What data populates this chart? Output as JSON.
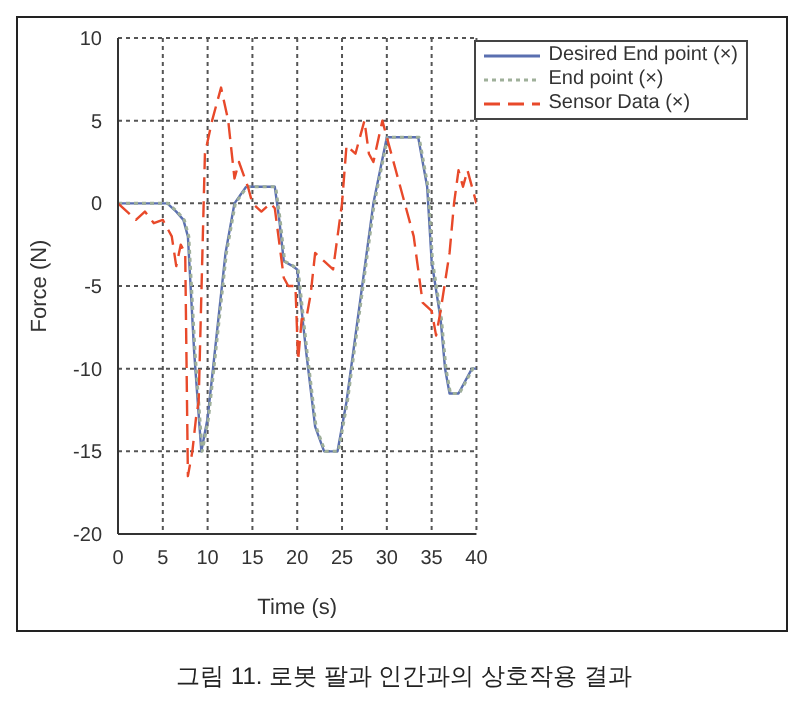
{
  "chart_data": {
    "type": "line",
    "xlabel": "Time (s)",
    "ylabel": "Force (N)",
    "xlim": [
      0,
      40
    ],
    "ylim": [
      -20,
      10
    ],
    "xticks": [
      0,
      5,
      10,
      15,
      20,
      25,
      30,
      35,
      40
    ],
    "yticks": [
      -20,
      -15,
      -10,
      -5,
      0,
      5,
      10
    ],
    "grid": true,
    "legend": "top right",
    "marker": "none",
    "annotations": [
      "그림 11. 로봇 팔과 인간과의 상호작용 결과"
    ],
    "series": [
      {
        "name": "Desired End point (×)",
        "color": "#5a6fb0",
        "line_style": "solid",
        "x": [
          0,
          5.5,
          6.5,
          7.3,
          7.8,
          8.5,
          9.3,
          10,
          11,
          12,
          13,
          14.3,
          15,
          17.5,
          18,
          18.5,
          19.5,
          20,
          21,
          22,
          23,
          24.5,
          25.5,
          27,
          28.5,
          30,
          30.5,
          33.5,
          34.5,
          35,
          36,
          36.5,
          37,
          38,
          39.5,
          40
        ],
        "values": [
          0,
          0,
          -0.5,
          -1,
          -2,
          -9,
          -15,
          -13,
          -8,
          -3,
          0,
          1,
          1,
          1,
          -1,
          -3.5,
          -3.8,
          -4,
          -9,
          -13.5,
          -15,
          -15,
          -12,
          -6,
          0,
          4,
          4,
          4,
          1,
          -3.5,
          -7,
          -10,
          -11.5,
          -11.5,
          -10,
          -10
        ]
      },
      {
        "name": "End point (×)",
        "color": "#9fb09a",
        "line_style": "dotted",
        "x": [
          0,
          5.6,
          6.6,
          7.4,
          7.9,
          8.6,
          9.4,
          10.1,
          11.1,
          12.1,
          13.1,
          14.4,
          15.1,
          17.6,
          18.1,
          18.6,
          19.6,
          20.1,
          21.1,
          22.1,
          23.1,
          24.6,
          25.6,
          27.1,
          28.6,
          30.1,
          30.6,
          33.6,
          34.6,
          35.1,
          36.1,
          36.6,
          37.1,
          38.1,
          39.6,
          40
        ],
        "values": [
          0,
          0,
          -0.5,
          -1,
          -2,
          -9,
          -15,
          -13,
          -8,
          -3,
          0,
          1,
          1,
          1,
          -1,
          -3.5,
          -3.8,
          -4,
          -9,
          -13.5,
          -15,
          -15,
          -12,
          -6,
          0,
          4,
          4,
          4,
          1,
          -3.5,
          -7,
          -10,
          -11.5,
          -11.5,
          -10,
          -10
        ]
      },
      {
        "name": "Sensor Data (×)",
        "color": "#e8492a",
        "line_style": "dashed",
        "x": [
          0,
          2,
          3,
          4,
          5,
          6,
          6.5,
          7,
          7.5,
          7.8,
          8.3,
          8.7,
          9,
          9.7,
          10.5,
          11.5,
          12.3,
          13,
          13.5,
          14.5,
          15,
          16,
          17,
          17.5,
          18.5,
          19,
          19.8,
          20.1,
          20.5,
          21,
          21.5,
          22,
          23,
          24,
          25,
          25.5,
          26.5,
          27.5,
          28,
          28.5,
          29.5,
          30.5,
          31,
          32,
          33,
          34,
          35,
          35.5,
          36,
          37,
          37.5,
          38,
          38.5,
          39,
          40
        ],
        "values": [
          0,
          -1,
          -0.5,
          -1.2,
          -1,
          -2,
          -3.8,
          -2.5,
          -3,
          -16.5,
          -15,
          -13,
          -12,
          3,
          5,
          7,
          5,
          1.5,
          2.5,
          1,
          0,
          -0.5,
          0,
          -0.3,
          -4.5,
          -5,
          -5,
          -9.5,
          -7,
          -7,
          -5.5,
          -3,
          -3.5,
          -4,
          0,
          3.5,
          3,
          5,
          3,
          2.5,
          5,
          3,
          2,
          0,
          -2,
          -6,
          -6.5,
          -8,
          -6.5,
          -3,
          0,
          2,
          1,
          2,
          0
        ]
      }
    ]
  }
}
